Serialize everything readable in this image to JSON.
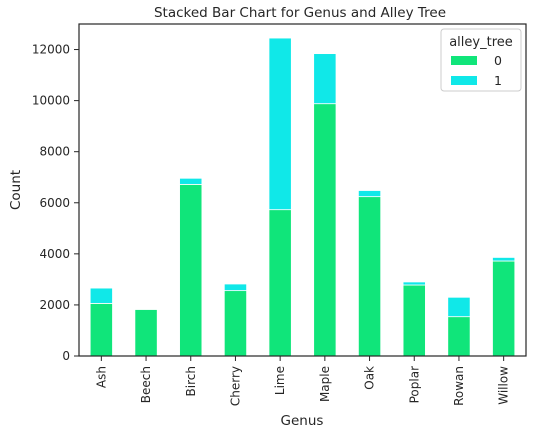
{
  "chart_data": {
    "type": "bar",
    "stacked": true,
    "title": "Stacked Bar Chart for Genus and Alley Tree",
    "xlabel": "Genus",
    "ylabel": "Count",
    "categories": [
      "Ash",
      "Beech",
      "Birch",
      "Cherry",
      "Lime",
      "Maple",
      "Oak",
      "Poplar",
      "Rowan",
      "Willow"
    ],
    "series": [
      {
        "name": "0",
        "color": "#10e57a",
        "values": [
          2060,
          1820,
          6720,
          2560,
          5730,
          9880,
          6240,
          2780,
          1540,
          3720
        ]
      },
      {
        "name": "1",
        "color": "#10e8e8",
        "values": [
          600,
          0,
          240,
          260,
          6720,
          1960,
          240,
          120,
          760,
          140
        ]
      }
    ],
    "ylim": [
      0,
      13000
    ],
    "yticks": [
      0,
      2000,
      4000,
      6000,
      8000,
      10000,
      12000
    ],
    "grid": false,
    "legend": {
      "title": "alley_tree",
      "position": "top-right"
    }
  }
}
